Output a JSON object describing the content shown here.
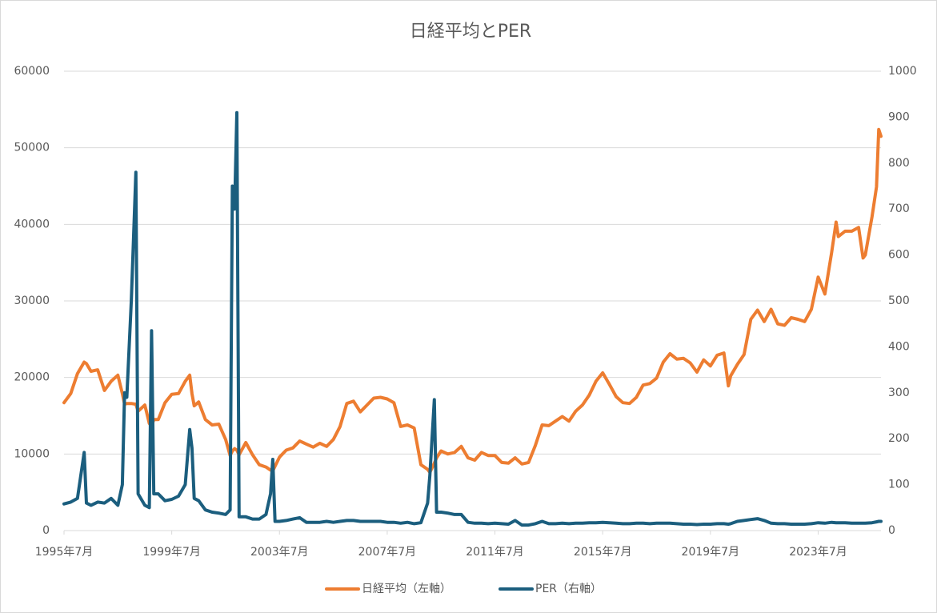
{
  "chart_data": {
    "type": "line",
    "title": "日経平均とPER",
    "x": [
      "1995-07",
      "1995-10",
      "1996-01",
      "1996-04",
      "1996-05",
      "1996-07",
      "1996-10",
      "1997-01",
      "1997-04",
      "1997-07",
      "1997-09",
      "1997-10",
      "1997-11",
      "1998-01",
      "1998-03",
      "1998-04",
      "1998-07",
      "1998-09",
      "1998-10",
      "1998-11",
      "1999-01",
      "1999-04",
      "1999-07",
      "1999-10",
      "2000-01",
      "2000-03",
      "2000-04",
      "2000-05",
      "2000-07",
      "2000-10",
      "2001-01",
      "2001-04",
      "2001-07",
      "2001-09",
      "2001-10",
      "2001-11",
      "2001-12",
      "2002-01",
      "2002-04",
      "2002-07",
      "2002-10",
      "2003-01",
      "2003-03",
      "2003-04",
      "2003-05",
      "2003-07",
      "2003-10",
      "2004-01",
      "2004-04",
      "2004-07",
      "2004-10",
      "2005-01",
      "2005-04",
      "2005-07",
      "2005-10",
      "2006-01",
      "2006-04",
      "2006-07",
      "2006-10",
      "2007-01",
      "2007-04",
      "2007-07",
      "2007-10",
      "2008-01",
      "2008-04",
      "2008-07",
      "2008-10",
      "2009-01",
      "2009-02",
      "2009-04",
      "2009-05",
      "2009-07",
      "2009-10",
      "2010-01",
      "2010-04",
      "2010-07",
      "2010-10",
      "2011-01",
      "2011-04",
      "2011-07",
      "2011-10",
      "2012-01",
      "2012-04",
      "2012-07",
      "2012-10",
      "2013-01",
      "2013-04",
      "2013-07",
      "2013-10",
      "2014-01",
      "2014-04",
      "2014-07",
      "2014-10",
      "2015-01",
      "2015-04",
      "2015-07",
      "2015-10",
      "2016-01",
      "2016-04",
      "2016-07",
      "2016-10",
      "2017-01",
      "2017-04",
      "2017-07",
      "2017-10",
      "2018-01",
      "2018-04",
      "2018-07",
      "2018-10",
      "2019-01",
      "2019-04",
      "2019-07",
      "2019-10",
      "2020-01",
      "2020-03",
      "2020-04",
      "2020-07",
      "2020-10",
      "2021-01",
      "2021-04",
      "2021-07",
      "2021-10",
      "2022-01",
      "2022-04",
      "2022-07",
      "2022-10",
      "2023-01",
      "2023-04",
      "2023-07",
      "2023-10",
      "2024-01",
      "2024-03",
      "2024-04",
      "2024-07",
      "2024-10",
      "2025-01",
      "2025-03",
      "2025-04",
      "2025-07",
      "2025-09",
      "2025-10",
      "2025-11"
    ],
    "xlim": [
      "1995-07",
      "2025-11"
    ],
    "xticks": [
      {
        "value": "1995-07",
        "label": "1995年7月"
      },
      {
        "value": "1999-07",
        "label": "1999年7月"
      },
      {
        "value": "2003-07",
        "label": "2003年7月"
      },
      {
        "value": "2007-07",
        "label": "2007年7月"
      },
      {
        "value": "2011-07",
        "label": "2011年7月"
      },
      {
        "value": "2015-07",
        "label": "2015年7月"
      },
      {
        "value": "2019-07",
        "label": "2019年7月"
      },
      {
        "value": "2023-07",
        "label": "2023年7月"
      }
    ],
    "ylim": [
      0,
      60000
    ],
    "yticks": [
      0,
      10000,
      20000,
      30000,
      40000,
      50000,
      60000
    ],
    "y2lim": [
      0,
      1000
    ],
    "y2ticks": [
      0,
      100,
      200,
      300,
      400,
      500,
      600,
      700,
      800,
      900,
      1000
    ],
    "grid": true,
    "legend": "bottom",
    "series": [
      {
        "name": "日経平均（左軸）",
        "color": "#ed7d31",
        "values": [
          16700,
          17900,
          20500,
          22000,
          21800,
          20800,
          21000,
          18300,
          19500,
          20300,
          17900,
          16500,
          16600,
          16600,
          16500,
          15600,
          16400,
          14000,
          13600,
          14500,
          14500,
          16700,
          17800,
          17900,
          19500,
          20300,
          17900,
          16300,
          16800,
          14500,
          13800,
          13900,
          11900,
          9800,
          10400,
          10700,
          10500,
          9900,
          11500,
          9900,
          8600,
          8300,
          7900,
          7800,
          8400,
          9600,
          10500,
          10800,
          11700,
          11300,
          10900,
          11400,
          11000,
          11900,
          13600,
          16600,
          16900,
          15500,
          16400,
          17300,
          17400,
          17200,
          16700,
          13600,
          13800,
          13400,
          8600,
          8000,
          7600,
          8800,
          9500,
          10400,
          10000,
          10200,
          11000,
          9500,
          9200,
          10200,
          9800,
          9800,
          8900,
          8800,
          9500,
          8700,
          8900,
          11100,
          13800,
          13700,
          14300,
          14900,
          14300,
          15600,
          16400,
          17700,
          19500,
          20600,
          19100,
          17500,
          16700,
          16600,
          17400,
          19000,
          19200,
          19900,
          22000,
          23100,
          22400,
          22500,
          21900,
          20700,
          22300,
          21500,
          22900,
          23200,
          18900,
          20200,
          21700,
          23000,
          27600,
          28800,
          27300,
          28900,
          27000,
          26800,
          27800,
          27600,
          27300,
          28900,
          33100,
          30900,
          36300,
          40300,
          38400,
          39100,
          39100,
          39600,
          35600,
          36000,
          41000,
          44900,
          52400,
          51500
        ]
      },
      {
        "name": "PER（右軸）",
        "color": "#1b5e7e",
        "axis": "y2",
        "values": [
          58,
          62,
          70,
          170,
          60,
          55,
          62,
          60,
          70,
          55,
          100,
          300,
          290,
          500,
          780,
          80,
          55,
          50,
          435,
          80,
          80,
          65,
          68,
          75,
          100,
          220,
          180,
          70,
          65,
          45,
          40,
          38,
          35,
          45,
          750,
          700,
          910,
          30,
          30,
          25,
          25,
          35,
          80,
          155,
          20,
          20,
          22,
          25,
          28,
          18,
          18,
          18,
          20,
          18,
          20,
          22,
          22,
          20,
          20,
          20,
          20,
          18,
          18,
          16,
          18,
          15,
          17,
          60,
          120,
          285,
          40,
          40,
          38,
          35,
          35,
          18,
          16,
          16,
          15,
          16,
          15,
          14,
          22,
          12,
          12,
          15,
          20,
          15,
          15,
          16,
          15,
          16,
          16,
          17,
          17,
          18,
          17,
          16,
          15,
          15,
          16,
          16,
          15,
          16,
          16,
          16,
          15,
          14,
          14,
          13,
          14,
          14,
          15,
          15,
          14,
          15,
          20,
          22,
          24,
          26,
          22,
          16,
          15,
          15,
          14,
          14,
          14,
          15,
          17,
          16,
          18,
          17,
          17,
          17,
          16,
          16,
          16,
          16,
          17,
          19,
          20,
          20
        ]
      }
    ]
  }
}
